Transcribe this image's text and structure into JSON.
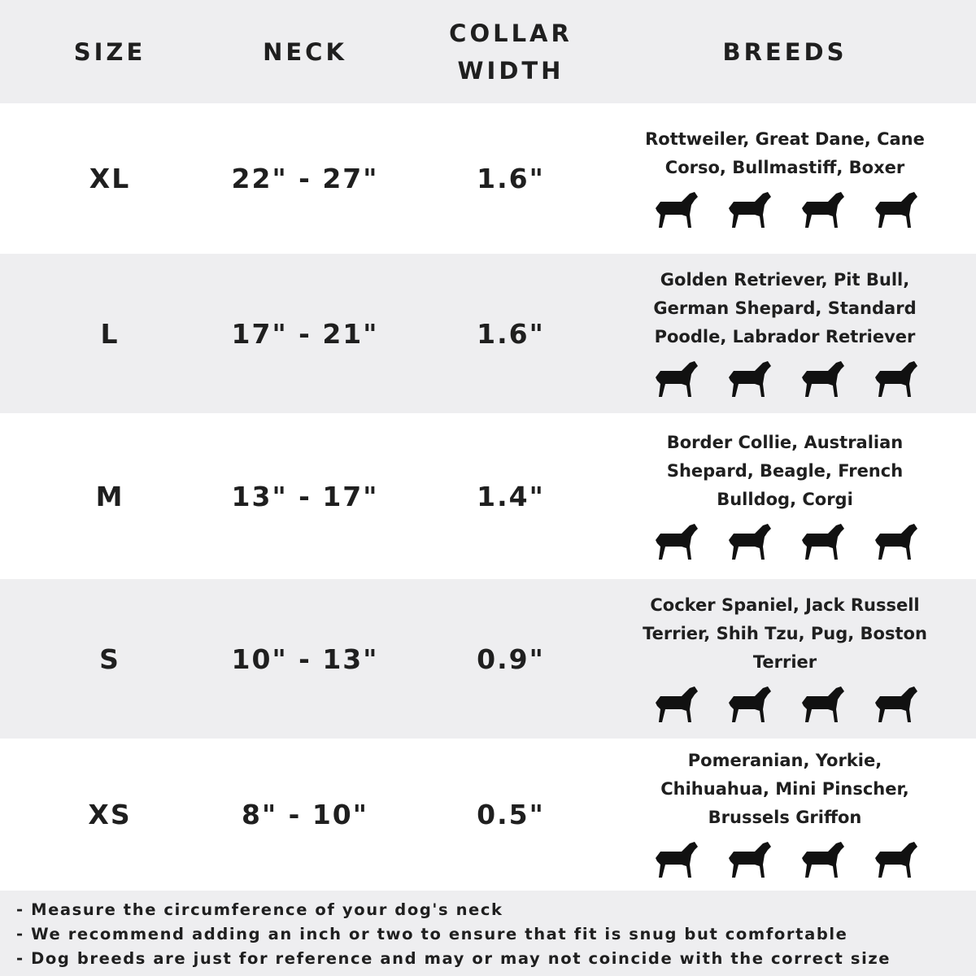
{
  "header": {
    "size": "SIZE",
    "neck": "NECK",
    "collar": "COLLAR WIDTH",
    "breeds": "BREEDS"
  },
  "rows": [
    {
      "size": "XL",
      "neck": "22\" - 27\"",
      "width": "1.6\"",
      "breeds": "Rottweiler, Great Dane, Cane Corso, Bullmastiff, Boxer",
      "icons": [
        "rottweiler-icon",
        "great-dane-icon",
        "doberman-icon",
        "bullmastiff-icon"
      ]
    },
    {
      "size": "L",
      "neck": "17\" - 21\"",
      "width": "1.6\"",
      "breeds": "Golden Retriever, Pit Bull, German Shepard, Standard Poodle, Labrador Retriever",
      "icons": [
        "golden-retriever-icon",
        "labrador-icon",
        "poodle-icon",
        "german-shepherd-icon"
      ]
    },
    {
      "size": "M",
      "neck": "13\" - 17\"",
      "width": "1.4\"",
      "breeds": "Border Collie, Australian Shepard, Beagle, French Bulldog, Corgi",
      "icons": [
        "border-collie-icon",
        "beagle-icon",
        "french-bulldog-icon",
        "corgi-icon"
      ]
    },
    {
      "size": "S",
      "neck": "10\" - 13\"",
      "width": "0.9\"",
      "breeds": "Cocker Spaniel, Jack Russell Terrier, Shih Tzu, Pug, Boston Terrier",
      "icons": [
        "cocker-spaniel-icon",
        "jack-russell-icon",
        "shih-tzu-icon",
        "pug-icon"
      ]
    },
    {
      "size": "XS",
      "neck": "8\" - 10\"",
      "width": "0.5\"",
      "breeds": "Pomeranian, Yorkie, Chihuahua, Mini Pinscher, Brussels Griffon",
      "icons": [
        "pomeranian-icon",
        "yorkie-icon",
        "chihuahua-icon",
        "mini-pinscher-icon"
      ]
    }
  ],
  "notes": [
    "- Measure the circumference of your dog's neck",
    "- We recommend adding an inch or two to ensure that fit is snug but comfortable",
    "- Dog breeds are just for reference and may or may not coincide with the correct size"
  ]
}
